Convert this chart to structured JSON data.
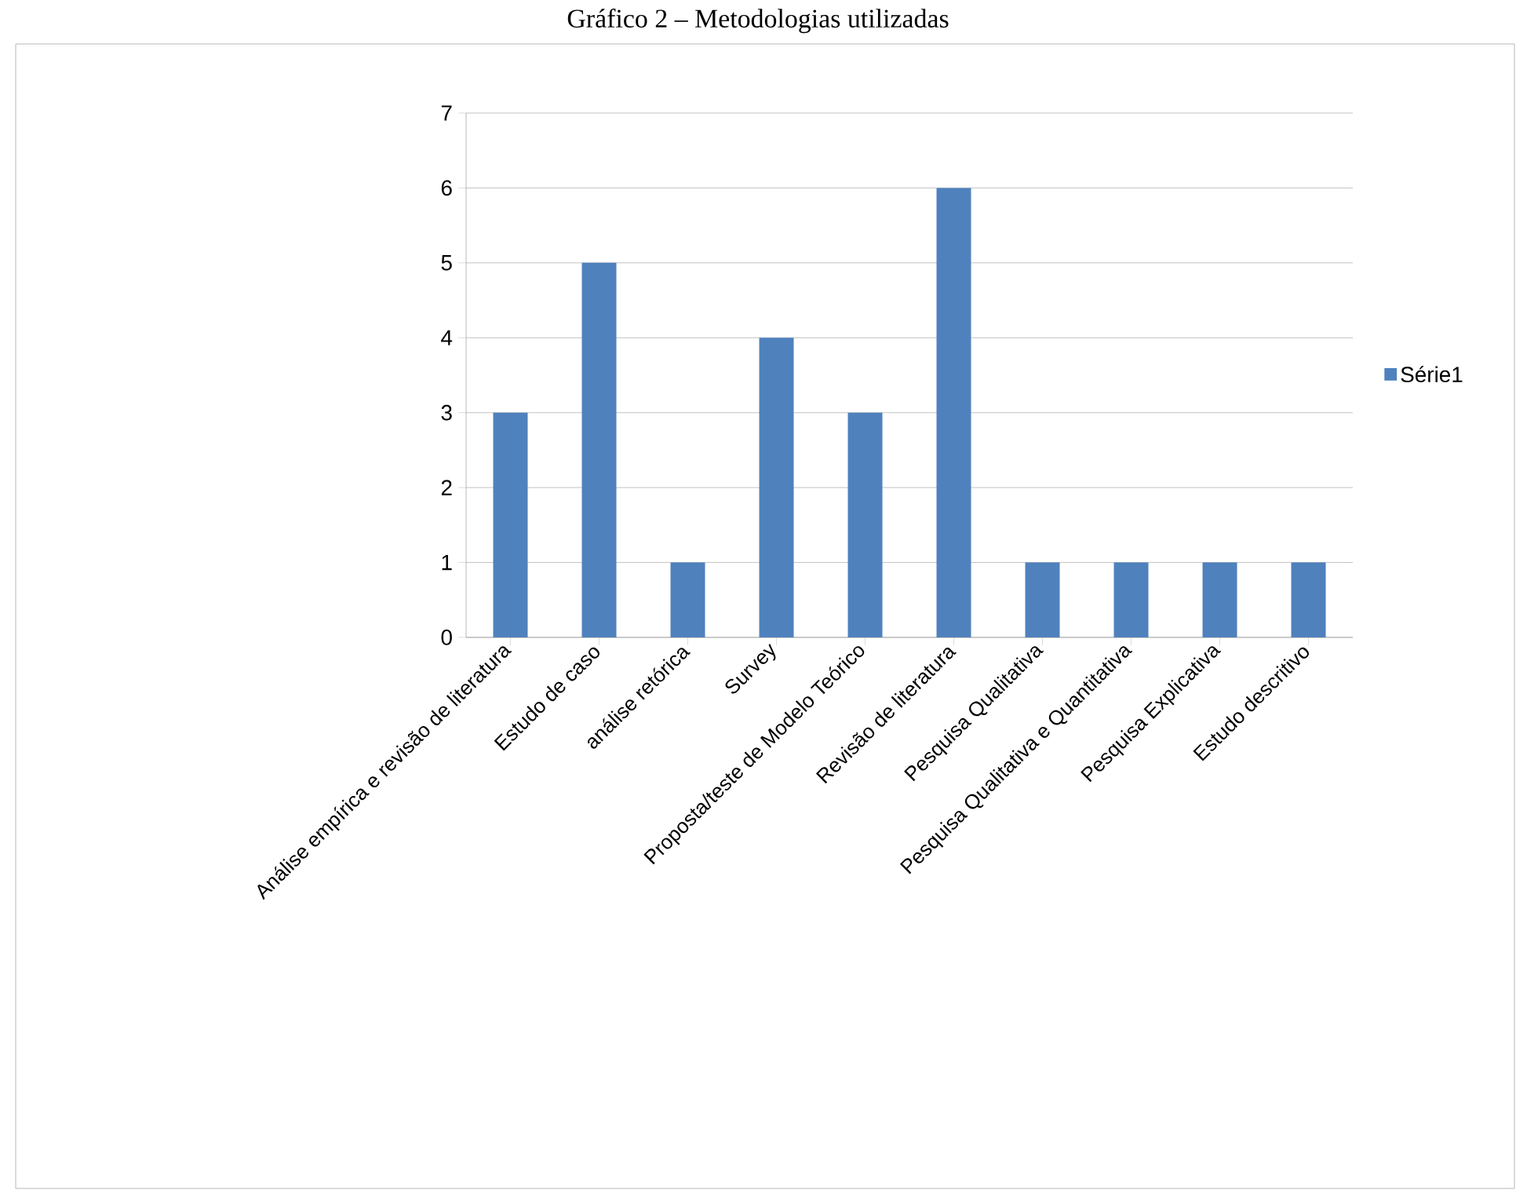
{
  "chart_data": {
    "type": "bar",
    "title": "Gráfico 2 – Metodologias utilizadas",
    "categories": [
      "Análise empírica e revisão de literatura",
      "Estudo de caso",
      "análise retórica",
      "Survey",
      "Proposta/teste de Modelo Teórico",
      "Revisão de literatura",
      "Pesquisa Qualitativa",
      "Pesquisa Qualitativa e Quantitativa",
      "Pesquisa Explicativa",
      "Estudo descritivo"
    ],
    "series": [
      {
        "name": "Série1",
        "color": "#4f81bd",
        "values": [
          3,
          5,
          1,
          4,
          3,
          6,
          1,
          1,
          1,
          1
        ]
      }
    ],
    "ylim": [
      0,
      7
    ],
    "yticks": [
      0,
      1,
      2,
      3,
      4,
      5,
      6,
      7
    ],
    "grid": "y",
    "legend": "right"
  }
}
